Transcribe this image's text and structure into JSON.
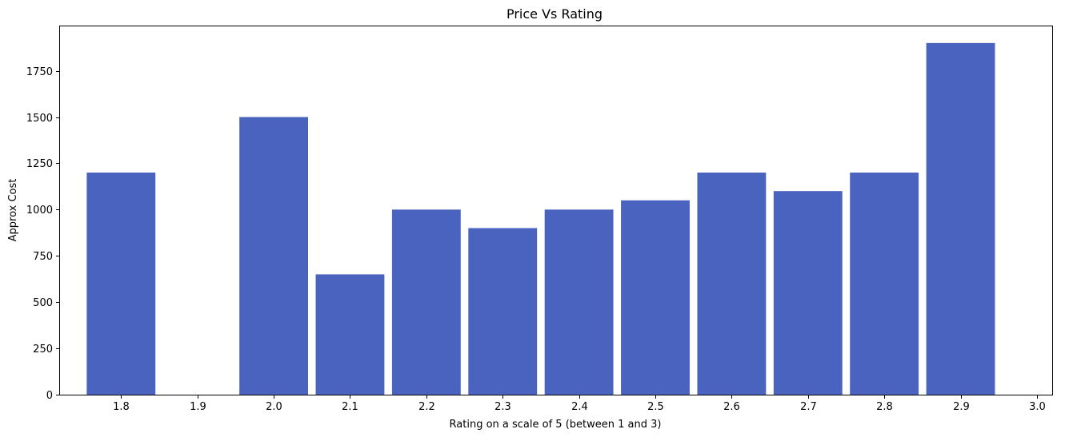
{
  "chart_data": {
    "type": "bar",
    "title": "Price Vs Rating",
    "xlabel": "Rating on a scale of 5 (between 1 and 3)",
    "ylabel": "Approx Cost",
    "bar_color": "#4a63be",
    "x_ticks": [
      "1.8",
      "1.9",
      "2.0",
      "2.1",
      "2.2",
      "2.3",
      "2.4",
      "2.5",
      "2.6",
      "2.7",
      "2.8",
      "2.9",
      "3.0"
    ],
    "y_ticks": [
      "0",
      "250",
      "500",
      "750",
      "1000",
      "1250",
      "1500",
      "1750"
    ],
    "xlim": [
      1.72,
      3.02
    ],
    "ylim": [
      0,
      1990
    ],
    "bar_width": 0.09,
    "x": [
      1.8,
      2.0,
      2.1,
      2.2,
      2.3,
      2.4,
      2.5,
      2.6,
      2.7,
      2.8,
      2.9
    ],
    "values": [
      1200,
      1500,
      650,
      1000,
      900,
      1000,
      1050,
      1200,
      1100,
      1200,
      1900
    ],
    "grid": false,
    "legend": "none"
  }
}
